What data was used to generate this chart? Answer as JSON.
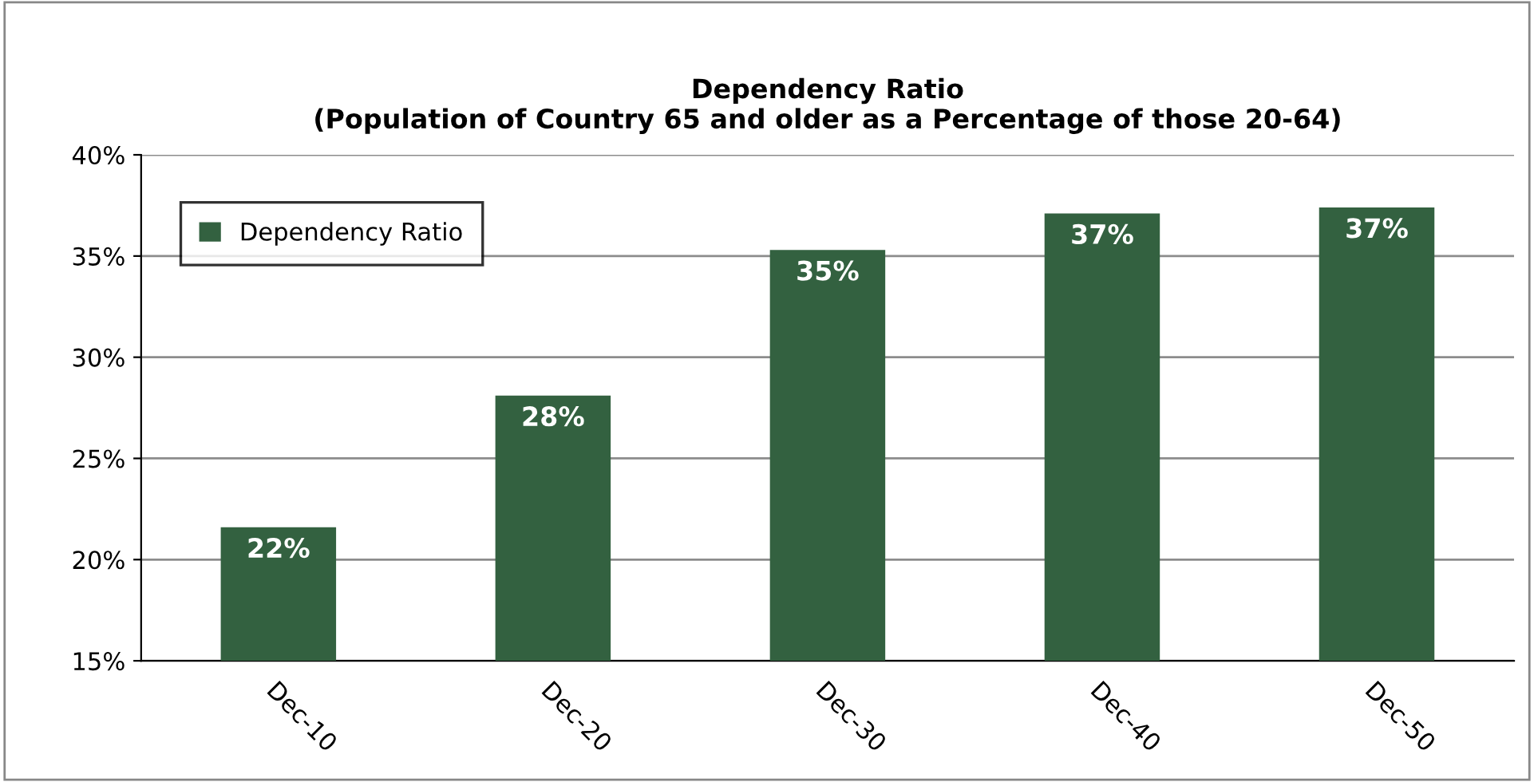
{
  "chart_data": {
    "type": "bar",
    "title": "Dependency Ratio\n(Population of Country 65 and older as a Percentage of those 20-64)",
    "categories": [
      "Dec-10",
      "Dec-20",
      "Dec-30",
      "Dec-40",
      "Dec-50"
    ],
    "series": [
      {
        "name": "Dependency Ratio",
        "color": "#336140",
        "values": [
          21.6,
          28.1,
          35.3,
          37.1,
          37.4
        ],
        "value_labels": [
          "22%",
          "28%",
          "35%",
          "37%",
          "37%"
        ]
      }
    ],
    "ylim": [
      15,
      40
    ],
    "yticks": [
      {
        "value": 15,
        "label": "15%"
      },
      {
        "value": 20,
        "label": "20%"
      },
      {
        "value": 25,
        "label": "25%"
      },
      {
        "value": 30,
        "label": "30%"
      },
      {
        "value": 35,
        "label": "35%"
      },
      {
        "value": 40,
        "label": "40%"
      }
    ],
    "grid": "y",
    "legend": "top left"
  }
}
